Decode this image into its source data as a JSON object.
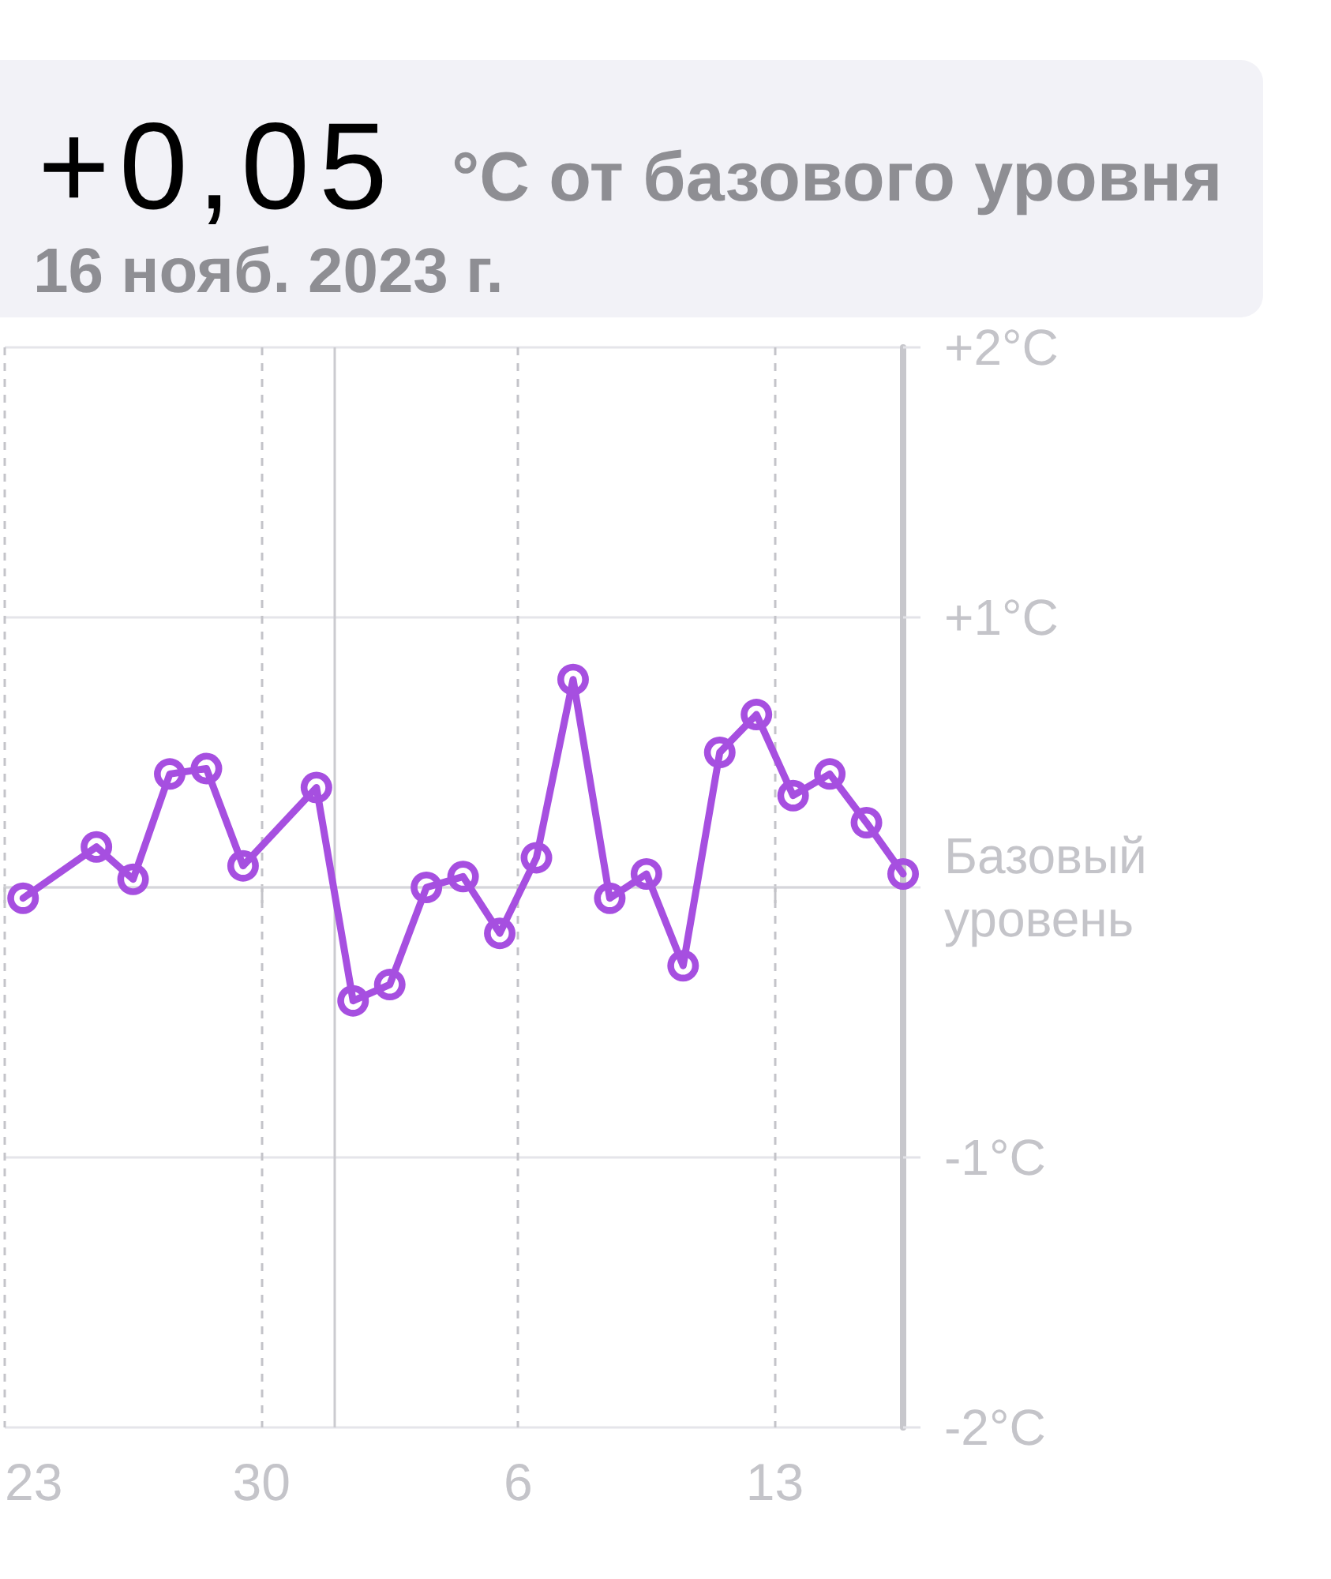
{
  "chart_data": {
    "type": "line",
    "title": "+0,05",
    "subtitle": "°C от базового уровня",
    "annotations": [
      "16 нояб. 2023 г."
    ],
    "x": [
      "2023-10-23T12:00",
      "2023-10-25T12:00",
      "2023-10-26T12:00",
      "2023-10-27T12:00",
      "2023-10-28T12:00",
      "2023-10-29T12:00",
      "2023-10-31T12:00",
      "2023-11-01T12:00",
      "2023-11-02T12:00",
      "2023-11-03T12:00",
      "2023-11-04T12:00",
      "2023-11-05T12:00",
      "2023-11-06T12:00",
      "2023-11-07T12:00",
      "2023-11-08T12:00",
      "2023-11-09T12:00",
      "2023-11-10T12:00",
      "2023-11-11T12:00",
      "2023-11-12T12:00",
      "2023-11-13T12:00",
      "2023-11-14T12:00",
      "2023-11-15T12:00",
      "2023-11-16T12:00"
    ],
    "series": [
      {
        "color": "#a64fe0",
        "values": [
          -0.04,
          0.15,
          0.03,
          0.42,
          0.44,
          0.08,
          0.37,
          -0.42,
          -0.36,
          0.0,
          0.04,
          -0.17,
          0.11,
          0.77,
          -0.04,
          0.05,
          -0.29,
          0.5,
          0.64,
          0.34,
          0.42,
          0.24,
          0.05
        ]
      }
    ],
    "xlim": [
      "2023-10-23",
      "2023-11-16T12:00"
    ],
    "xticks": [
      {
        "value": "2023-10-23",
        "label": "23"
      },
      {
        "value": "2023-10-30",
        "label": "30"
      },
      {
        "value": "2023-11-06",
        "label": "6"
      },
      {
        "value": "2023-11-13",
        "label": "13"
      }
    ],
    "ylim": [
      -2,
      2
    ],
    "yticks": [
      {
        "value": 2,
        "label": "+2°C"
      },
      {
        "value": 1,
        "label": "+1°C"
      },
      {
        "value": 0,
        "label": "Базовый уровень"
      },
      {
        "value": -1,
        "label": "-1°C"
      },
      {
        "value": -2,
        "label": "-2°C"
      }
    ],
    "ref_lines": [
      {
        "axis": "x",
        "value": "2023-11-01",
        "color": "#cbcbd0",
        "line_style": "solid"
      }
    ],
    "grid": true,
    "marker": "circle",
    "line_style": "solid"
  }
}
